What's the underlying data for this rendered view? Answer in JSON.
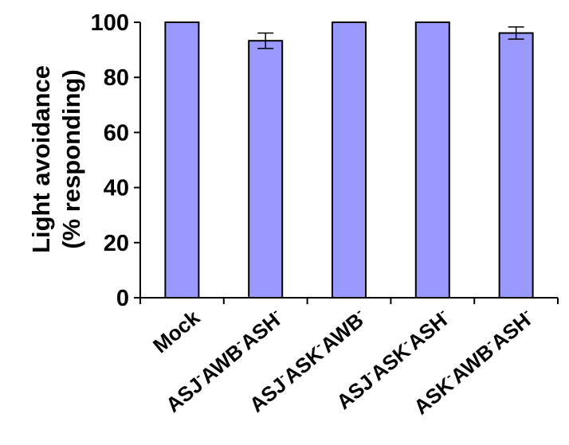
{
  "chart_data": {
    "type": "bar",
    "ylabel": [
      "Light avoidance",
      "(% responding)"
    ],
    "xlabel": "",
    "ylim": [
      0,
      100
    ],
    "yticks": [
      0,
      20,
      40,
      60,
      80,
      100
    ],
    "grid": false,
    "legend": "none",
    "bar_color": "#9999ff",
    "categories": [
      {
        "parts": [
          [
            "Mock",
            false
          ]
        ]
      },
      {
        "parts": [
          [
            "ASJ",
            false
          ],
          [
            "-",
            true
          ],
          [
            "AWB",
            false
          ],
          [
            "-",
            true
          ],
          [
            "ASH",
            false
          ],
          [
            "-",
            true
          ]
        ]
      },
      {
        "parts": [
          [
            "ASJ",
            false
          ],
          [
            "-",
            true
          ],
          [
            "ASK",
            false
          ],
          [
            "-",
            true
          ],
          [
            "AWB",
            false
          ],
          [
            "-",
            true
          ]
        ]
      },
      {
        "parts": [
          [
            "ASJ",
            false
          ],
          [
            "-",
            true
          ],
          [
            "ASK",
            false
          ],
          [
            "-",
            true
          ],
          [
            "ASH",
            false
          ],
          [
            "-",
            true
          ]
        ]
      },
      {
        "parts": [
          [
            "ASK",
            false
          ],
          [
            "-",
            true
          ],
          [
            "AWB",
            false
          ],
          [
            "-",
            true
          ],
          [
            "ASH",
            false
          ],
          [
            "-",
            true
          ]
        ]
      }
    ],
    "values": [
      100,
      93.3,
      100,
      100,
      96.1
    ],
    "errors": [
      0,
      2.8,
      0,
      0,
      2.2
    ]
  }
}
